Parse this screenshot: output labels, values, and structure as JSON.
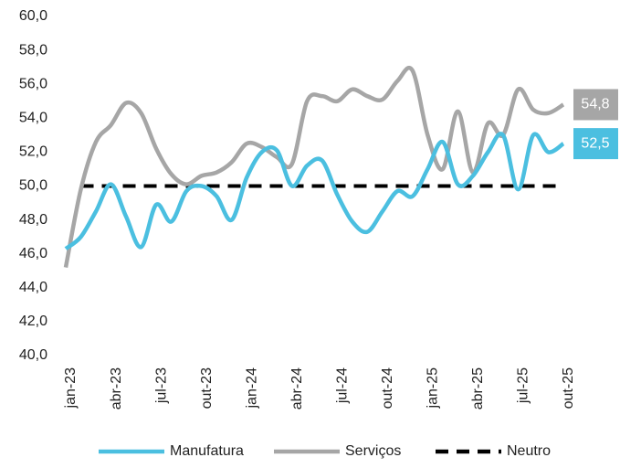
{
  "chart_data": {
    "type": "line",
    "categories": [
      "jan-23",
      null,
      null,
      "abr-23",
      null,
      null,
      "jul-23",
      null,
      null,
      "out-23",
      null,
      null,
      "jan-24",
      null,
      null,
      "abr-24",
      null,
      null,
      "jul-24",
      null,
      null,
      "out-24",
      null,
      null,
      "jan-25",
      null,
      null,
      "abr-25",
      null,
      null,
      "jul-25",
      null,
      null,
      "out-25"
    ],
    "series": [
      {
        "name": "Manufatura",
        "color": "#4bbfe0",
        "dashed": false,
        "values": [
          46.3,
          47.0,
          48.5,
          50.1,
          48.2,
          46.4,
          48.9,
          47.9,
          49.7,
          50.0,
          49.4,
          48.0,
          50.5,
          52.0,
          52.1,
          50.0,
          51.2,
          51.5,
          49.5,
          47.9,
          47.3,
          48.5,
          49.7,
          49.4,
          51.0,
          52.6,
          50.1,
          50.6,
          52.0,
          53.0,
          49.8,
          53.0,
          52.0,
          52.5
        ],
        "value_labels": [
          null,
          null,
          null,
          null,
          null,
          null,
          null,
          null,
          null,
          null,
          null,
          null,
          null,
          null,
          null,
          null,
          null,
          null,
          null,
          null,
          null,
          null,
          null,
          null,
          null,
          null,
          null,
          null,
          null,
          null,
          null,
          null,
          null,
          "52,5"
        ]
      },
      {
        "name": "Serviços",
        "color": "#a6a6a6",
        "dashed": false,
        "values": [
          45.2,
          49.8,
          52.6,
          53.6,
          54.9,
          54.3,
          52.2,
          50.7,
          50.1,
          50.6,
          50.8,
          51.4,
          52.5,
          52.3,
          51.7,
          51.3,
          55.0,
          55.3,
          55.0,
          55.7,
          55.3,
          55.1,
          56.2,
          56.8,
          53.0,
          51.0,
          54.4,
          50.8,
          53.7,
          53.0,
          55.7,
          54.5,
          54.3,
          54.8
        ],
        "value_labels": [
          null,
          null,
          null,
          null,
          null,
          null,
          null,
          null,
          null,
          null,
          null,
          null,
          null,
          null,
          null,
          null,
          null,
          null,
          null,
          null,
          null,
          null,
          null,
          null,
          null,
          null,
          null,
          null,
          null,
          null,
          null,
          null,
          null,
          "54,8"
        ]
      },
      {
        "name": "Neutro",
        "color": "#000000",
        "dashed": true,
        "values": [
          null,
          50,
          50,
          50,
          50,
          50,
          50,
          50,
          50,
          50,
          50,
          50,
          50,
          50,
          50,
          50,
          50,
          50,
          50,
          50,
          50,
          50,
          50,
          50,
          50,
          50,
          50,
          50,
          50,
          50,
          50,
          50,
          50,
          50
        ]
      }
    ],
    "ylim": [
      40,
      60
    ],
    "yticks": [
      {
        "value": 40,
        "label": "40,0"
      },
      {
        "value": 42,
        "label": "42,0"
      },
      {
        "value": 44,
        "label": "44,0"
      },
      {
        "value": 46,
        "label": "46,0"
      },
      {
        "value": 48,
        "label": "48,0"
      },
      {
        "value": 50,
        "label": "50,0"
      },
      {
        "value": 52,
        "label": "52,0"
      },
      {
        "value": 54,
        "label": "54,0"
      },
      {
        "value": 56,
        "label": "56,0"
      },
      {
        "value": 58,
        "label": "58,0"
      },
      {
        "value": 60,
        "label": "60,0"
      }
    ],
    "grid": false,
    "legend": "bottom"
  }
}
